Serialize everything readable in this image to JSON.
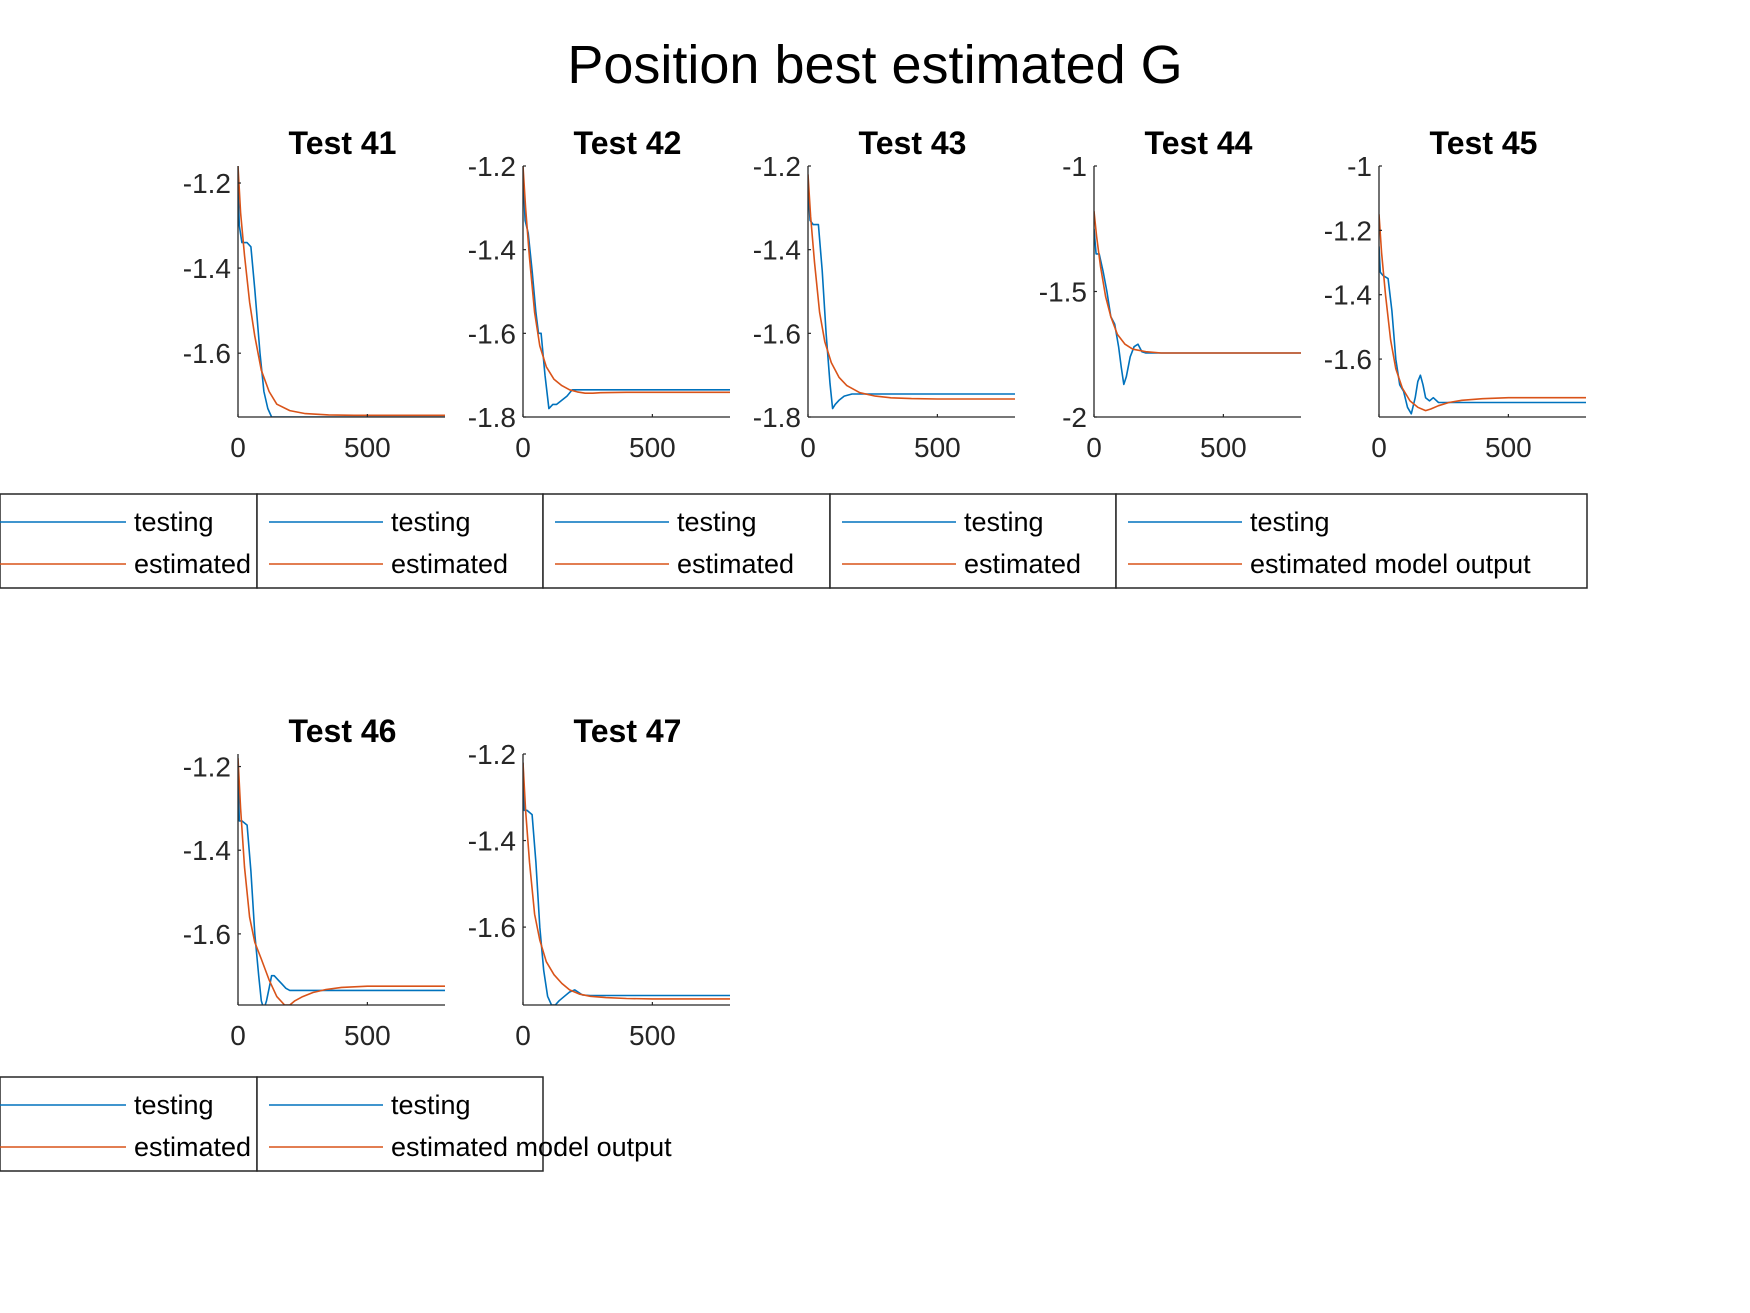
{
  "title": "Position best estimated G",
  "colors": {
    "testing": "#0072BD",
    "estimated": "#D95319",
    "axis": "#262626",
    "legend_border": "#262626"
  },
  "chart_data": [
    {
      "type": "line",
      "title": "Test 41",
      "xlim": [
        0,
        800
      ],
      "ylim": [
        -1.75,
        -1.16
      ],
      "xticks": [
        0,
        500
      ],
      "xticklabels": [
        "0",
        "500"
      ],
      "yticks": [
        -1.2,
        -1.4,
        -1.6
      ],
      "yticklabels": [
        "-1.2",
        "-1.4",
        "-1.6"
      ],
      "legend": [
        "testing",
        "estimated"
      ],
      "series": [
        {
          "name": "testing",
          "x": [
            0,
            5,
            15,
            35,
            50,
            65,
            85,
            100,
            115,
            130,
            800
          ],
          "y": [
            -1.2,
            -1.3,
            -1.34,
            -1.34,
            -1.35,
            -1.45,
            -1.6,
            -1.69,
            -1.73,
            -1.75,
            -1.75
          ]
        },
        {
          "name": "estimated",
          "x": [
            0,
            10,
            25,
            45,
            65,
            90,
            120,
            150,
            200,
            260,
            350,
            450,
            800
          ],
          "y": [
            -1.16,
            -1.27,
            -1.37,
            -1.48,
            -1.56,
            -1.64,
            -1.69,
            -1.72,
            -1.735,
            -1.742,
            -1.745,
            -1.746,
            -1.746
          ]
        }
      ]
    },
    {
      "type": "line",
      "title": "Test 42",
      "xlim": [
        0,
        800
      ],
      "ylim": [
        -1.8,
        -1.2
      ],
      "xticks": [
        0,
        500
      ],
      "xticklabels": [
        "0",
        "500"
      ],
      "yticks": [
        -1.2,
        -1.4,
        -1.6,
        -1.8
      ],
      "yticklabels": [
        "-1.2",
        "-1.4",
        "-1.6",
        "-1.8"
      ],
      "legend": [
        "testing",
        "estimated"
      ],
      "series": [
        {
          "name": "testing",
          "x": [
            0,
            8,
            20,
            35,
            50,
            60,
            70,
            85,
            100,
            115,
            130,
            150,
            170,
            190,
            210,
            800
          ],
          "y": [
            -1.22,
            -1.33,
            -1.36,
            -1.45,
            -1.55,
            -1.6,
            -1.6,
            -1.7,
            -1.78,
            -1.77,
            -1.77,
            -1.76,
            -1.75,
            -1.735,
            -1.735,
            -1.735
          ]
        },
        {
          "name": "estimated",
          "x": [
            0,
            10,
            25,
            45,
            65,
            90,
            120,
            150,
            180,
            210,
            240,
            270,
            300,
            400,
            800
          ],
          "y": [
            -1.2,
            -1.3,
            -1.42,
            -1.55,
            -1.63,
            -1.68,
            -1.71,
            -1.725,
            -1.735,
            -1.74,
            -1.743,
            -1.743,
            -1.742,
            -1.741,
            -1.741
          ]
        }
      ]
    },
    {
      "type": "line",
      "title": "Test 43",
      "xlim": [
        0,
        800
      ],
      "ylim": [
        -1.8,
        -1.2
      ],
      "xticks": [
        0,
        500
      ],
      "xticklabels": [
        "0",
        "500"
      ],
      "yticks": [
        -1.2,
        -1.4,
        -1.6,
        -1.8
      ],
      "yticklabels": [
        "-1.2",
        "-1.4",
        "-1.6",
        "-1.8"
      ],
      "legend": [
        "testing",
        "estimated"
      ],
      "series": [
        {
          "name": "testing",
          "x": [
            0,
            8,
            20,
            40,
            55,
            70,
            85,
            95,
            105,
            120,
            140,
            170,
            220,
            800
          ],
          "y": [
            -1.26,
            -1.33,
            -1.34,
            -1.34,
            -1.45,
            -1.6,
            -1.72,
            -1.78,
            -1.77,
            -1.76,
            -1.75,
            -1.745,
            -1.745,
            -1.745
          ]
        },
        {
          "name": "estimated",
          "x": [
            0,
            10,
            25,
            45,
            65,
            90,
            120,
            150,
            200,
            260,
            320,
            400,
            500,
            800
          ],
          "y": [
            -1.22,
            -1.32,
            -1.43,
            -1.55,
            -1.62,
            -1.67,
            -1.705,
            -1.725,
            -1.742,
            -1.75,
            -1.754,
            -1.756,
            -1.757,
            -1.757
          ]
        }
      ]
    },
    {
      "type": "line",
      "title": "Test 44",
      "xlim": [
        0,
        800
      ],
      "ylim": [
        -2,
        -1
      ],
      "xticks": [
        0,
        500
      ],
      "xticklabels": [
        "0",
        "500"
      ],
      "yticks": [
        -1,
        -1.5,
        -2
      ],
      "yticklabels": [
        "-1",
        "-1.5",
        "-2"
      ],
      "legend": [
        "testing",
        "estimated"
      ],
      "series": [
        {
          "name": "testing",
          "x": [
            0,
            8,
            20,
            35,
            50,
            65,
            80,
            95,
            105,
            115,
            125,
            140,
            155,
            170,
            185,
            200,
            230,
            260,
            800
          ],
          "y": [
            -1.25,
            -1.35,
            -1.35,
            -1.42,
            -1.5,
            -1.6,
            -1.63,
            -1.72,
            -1.8,
            -1.87,
            -1.84,
            -1.76,
            -1.72,
            -1.71,
            -1.74,
            -1.745,
            -1.745,
            -1.745,
            -1.745
          ]
        },
        {
          "name": "estimated",
          "x": [
            0,
            10,
            25,
            45,
            65,
            90,
            120,
            150,
            200,
            260,
            350,
            800
          ],
          "y": [
            -1.18,
            -1.28,
            -1.4,
            -1.52,
            -1.6,
            -1.67,
            -1.71,
            -1.73,
            -1.74,
            -1.745,
            -1.745,
            -1.745
          ]
        }
      ]
    },
    {
      "type": "line",
      "title": "Test 45",
      "xlim": [
        0,
        800
      ],
      "ylim": [
        -1.78,
        -1
      ],
      "xticks": [
        0,
        500
      ],
      "xticklabels": [
        "0",
        "500"
      ],
      "yticks": [
        -1,
        -1.2,
        -1.4,
        -1.6
      ],
      "yticklabels": [
        "-1",
        "-1.2",
        "-1.4",
        "-1.6"
      ],
      "legend": [
        "testing",
        "estimated model output"
      ],
      "series": [
        {
          "name": "testing",
          "x": [
            0,
            5,
            15,
            35,
            50,
            65,
            80,
            95,
            110,
            125,
            140,
            150,
            160,
            170,
            180,
            195,
            210,
            230,
            260,
            800
          ],
          "y": [
            -1.25,
            -1.33,
            -1.34,
            -1.35,
            -1.45,
            -1.6,
            -1.68,
            -1.7,
            -1.75,
            -1.77,
            -1.72,
            -1.67,
            -1.65,
            -1.68,
            -1.72,
            -1.73,
            -1.72,
            -1.735,
            -1.735,
            -1.735
          ]
        },
        {
          "name": "estimated",
          "x": [
            0,
            10,
            25,
            45,
            65,
            90,
            120,
            150,
            180,
            200,
            230,
            270,
            320,
            400,
            500,
            800
          ],
          "y": [
            -1.15,
            -1.27,
            -1.4,
            -1.54,
            -1.63,
            -1.69,
            -1.73,
            -1.75,
            -1.76,
            -1.755,
            -1.745,
            -1.735,
            -1.728,
            -1.723,
            -1.72,
            -1.72
          ]
        }
      ]
    },
    {
      "type": "line",
      "title": "Test 46",
      "xlim": [
        0,
        800
      ],
      "ylim": [
        -1.77,
        -1.17
      ],
      "xticks": [
        0,
        500
      ],
      "xticklabels": [
        "0",
        "500"
      ],
      "yticks": [
        -1.2,
        -1.4,
        -1.6
      ],
      "yticklabels": [
        "-1.2",
        "-1.4",
        "-1.6"
      ],
      "legend": [
        "testing",
        "estimated"
      ],
      "series": [
        {
          "name": "testing",
          "x": [
            0,
            5,
            15,
            35,
            50,
            65,
            80,
            90,
            100,
            110,
            120,
            130,
            140,
            155,
            170,
            185,
            200,
            230,
            260,
            800
          ],
          "y": [
            -1.2,
            -1.33,
            -1.33,
            -1.34,
            -1.45,
            -1.6,
            -1.7,
            -1.76,
            -1.78,
            -1.76,
            -1.73,
            -1.7,
            -1.7,
            -1.71,
            -1.72,
            -1.73,
            -1.735,
            -1.735,
            -1.735,
            -1.735
          ]
        },
        {
          "name": "estimated",
          "x": [
            0,
            10,
            25,
            45,
            65,
            90,
            120,
            150,
            180,
            200,
            220,
            250,
            290,
            340,
            400,
            500,
            800
          ],
          "y": [
            -1.18,
            -1.3,
            -1.44,
            -1.56,
            -1.62,
            -1.66,
            -1.71,
            -1.75,
            -1.77,
            -1.77,
            -1.76,
            -1.75,
            -1.74,
            -1.733,
            -1.728,
            -1.725,
            -1.725
          ]
        }
      ]
    },
    {
      "type": "line",
      "title": "Test 47",
      "xlim": [
        0,
        800
      ],
      "ylim": [
        -1.78,
        -1.2
      ],
      "xticks": [
        0,
        500
      ],
      "xticklabels": [
        "0",
        "500"
      ],
      "yticks": [
        -1.2,
        -1.4,
        -1.6
      ],
      "yticklabels": [
        "-1.2",
        "-1.4",
        "-1.6"
      ],
      "legend": [
        "testing",
        "estimated model output"
      ],
      "series": [
        {
          "name": "testing",
          "x": [
            0,
            5,
            15,
            35,
            50,
            65,
            80,
            95,
            110,
            125,
            140,
            160,
            180,
            200,
            230,
            260,
            800
          ],
          "y": [
            -1.22,
            -1.33,
            -1.33,
            -1.34,
            -1.45,
            -1.6,
            -1.7,
            -1.76,
            -1.78,
            -1.78,
            -1.77,
            -1.76,
            -1.75,
            -1.745,
            -1.757,
            -1.758,
            -1.758
          ]
        },
        {
          "name": "estimated",
          "x": [
            0,
            10,
            25,
            45,
            65,
            90,
            120,
            150,
            180,
            220,
            260,
            320,
            400,
            500,
            800
          ],
          "y": [
            -1.22,
            -1.33,
            -1.45,
            -1.57,
            -1.63,
            -1.68,
            -1.71,
            -1.73,
            -1.745,
            -1.755,
            -1.76,
            -1.763,
            -1.765,
            -1.766,
            -1.766
          ]
        }
      ]
    }
  ]
}
